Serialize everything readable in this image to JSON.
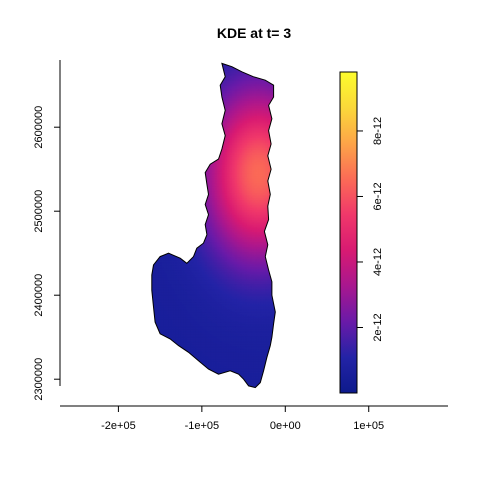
{
  "chart_data": {
    "type": "heatmap",
    "title": "KDE at t= 3",
    "xlabel": "",
    "ylabel": "",
    "x_ticks": [
      {
        "value": -200000,
        "label": "-2e+05"
      },
      {
        "value": -100000,
        "label": "-1e+05"
      },
      {
        "value": 0,
        "label": "0e+00"
      },
      {
        "value": 100000,
        "label": "1e+05"
      }
    ],
    "y_ticks": [
      {
        "value": 2300000,
        "label": "2300000"
      },
      {
        "value": 2400000,
        "label": "2400000"
      },
      {
        "value": 2500000,
        "label": "2500000"
      },
      {
        "value": 2600000,
        "label": "2600000"
      }
    ],
    "xlim": [
      -270000,
      195000
    ],
    "ylim": [
      2280000,
      2680000
    ],
    "colorbar": {
      "range": [
        0,
        9.8e-12
      ],
      "colors": [
        "#0d1a8c",
        "#2323a6",
        "#6a1aa8",
        "#a8178f",
        "#d81a72",
        "#f0386a",
        "#fb6b56",
        "#fda548",
        "#fbd83a",
        "#fdfd2c"
      ],
      "ticks": [
        {
          "value": 2e-12,
          "label": "2e-12"
        },
        {
          "value": 4e-12,
          "label": "4e-12"
        },
        {
          "value": 6e-12,
          "label": "6e-12"
        },
        {
          "value": 8e-12,
          "label": "8e-12"
        }
      ]
    },
    "density_peaks": [
      {
        "x": -32000,
        "y": 2545000,
        "value": 6.5e-12,
        "sx": 45000,
        "sy": 70000
      }
    ],
    "region_outline": [
      [
        -76000,
        2676000
      ],
      [
        -64000,
        2672000
      ],
      [
        -52000,
        2666000
      ],
      [
        -38000,
        2660000
      ],
      [
        -24000,
        2656000
      ],
      [
        -14000,
        2650000
      ],
      [
        -14000,
        2636000
      ],
      [
        -20000,
        2626000
      ],
      [
        -16000,
        2610000
      ],
      [
        -20000,
        2596000
      ],
      [
        -17000,
        2580000
      ],
      [
        -21000,
        2566000
      ],
      [
        -17000,
        2550000
      ],
      [
        -21000,
        2536000
      ],
      [
        -18000,
        2520000
      ],
      [
        -21000,
        2506000
      ],
      [
        -20000,
        2490000
      ],
      [
        -25000,
        2476000
      ],
      [
        -21000,
        2460000
      ],
      [
        -24000,
        2446000
      ],
      [
        -20000,
        2430000
      ],
      [
        -16000,
        2416000
      ],
      [
        -16000,
        2400000
      ],
      [
        -12000,
        2380000
      ],
      [
        -14000,
        2366000
      ],
      [
        -16000,
        2350000
      ],
      [
        -18000,
        2340000
      ],
      [
        -22000,
        2326000
      ],
      [
        -26000,
        2310000
      ],
      [
        -30000,
        2296000
      ],
      [
        -36000,
        2290000
      ],
      [
        -44000,
        2292000
      ],
      [
        -50000,
        2300000
      ],
      [
        -56000,
        2306000
      ],
      [
        -66000,
        2310000
      ],
      [
        -80000,
        2306000
      ],
      [
        -92000,
        2312000
      ],
      [
        -104000,
        2322000
      ],
      [
        -116000,
        2332000
      ],
      [
        -128000,
        2340000
      ],
      [
        -138000,
        2348000
      ],
      [
        -150000,
        2354000
      ],
      [
        -156000,
        2368000
      ],
      [
        -158000,
        2386000
      ],
      [
        -160000,
        2406000
      ],
      [
        -160000,
        2424000
      ],
      [
        -158000,
        2436000
      ],
      [
        -150000,
        2446000
      ],
      [
        -140000,
        2450000
      ],
      [
        -126000,
        2444000
      ],
      [
        -118000,
        2438000
      ],
      [
        -110000,
        2446000
      ],
      [
        -106000,
        2456000
      ],
      [
        -98000,
        2462000
      ],
      [
        -94000,
        2472000
      ],
      [
        -96000,
        2484000
      ],
      [
        -92000,
        2496000
      ],
      [
        -96000,
        2508000
      ],
      [
        -92000,
        2520000
      ],
      [
        -94000,
        2532000
      ],
      [
        -96000,
        2546000
      ],
      [
        -90000,
        2556000
      ],
      [
        -80000,
        2562000
      ],
      [
        -76000,
        2574000
      ],
      [
        -72000,
        2590000
      ],
      [
        -76000,
        2604000
      ],
      [
        -72000,
        2620000
      ],
      [
        -76000,
        2636000
      ],
      [
        -78000,
        2650000
      ],
      [
        -72000,
        2660000
      ]
    ]
  }
}
